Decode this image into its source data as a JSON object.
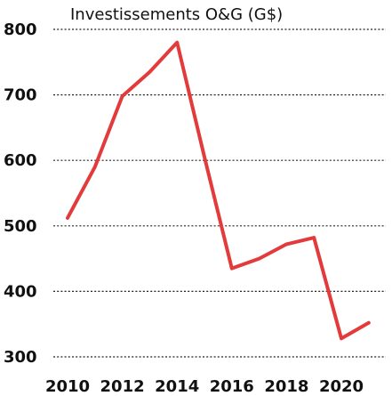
{
  "chart_data": {
    "type": "line",
    "title": "Investissements O&G (G$)",
    "xlabel": "",
    "ylabel": "",
    "grid": true,
    "x_ticks": [
      2010,
      2012,
      2014,
      2016,
      2018,
      2020
    ],
    "y_ticks": [
      300,
      400,
      500,
      600,
      700,
      800
    ],
    "xlim": [
      2010,
      2021
    ],
    "ylim": [
      300,
      800
    ],
    "series": [
      {
        "x": [
          2010,
          2011,
          2012,
          2013,
          2014,
          2015,
          2016,
          2017,
          2018,
          2019,
          2020,
          2021
        ],
        "values": [
          512,
          590,
          698,
          735,
          780,
          605,
          435,
          450,
          472,
          482,
          328,
          352
        ],
        "color": "#e33b3b"
      }
    ]
  }
}
